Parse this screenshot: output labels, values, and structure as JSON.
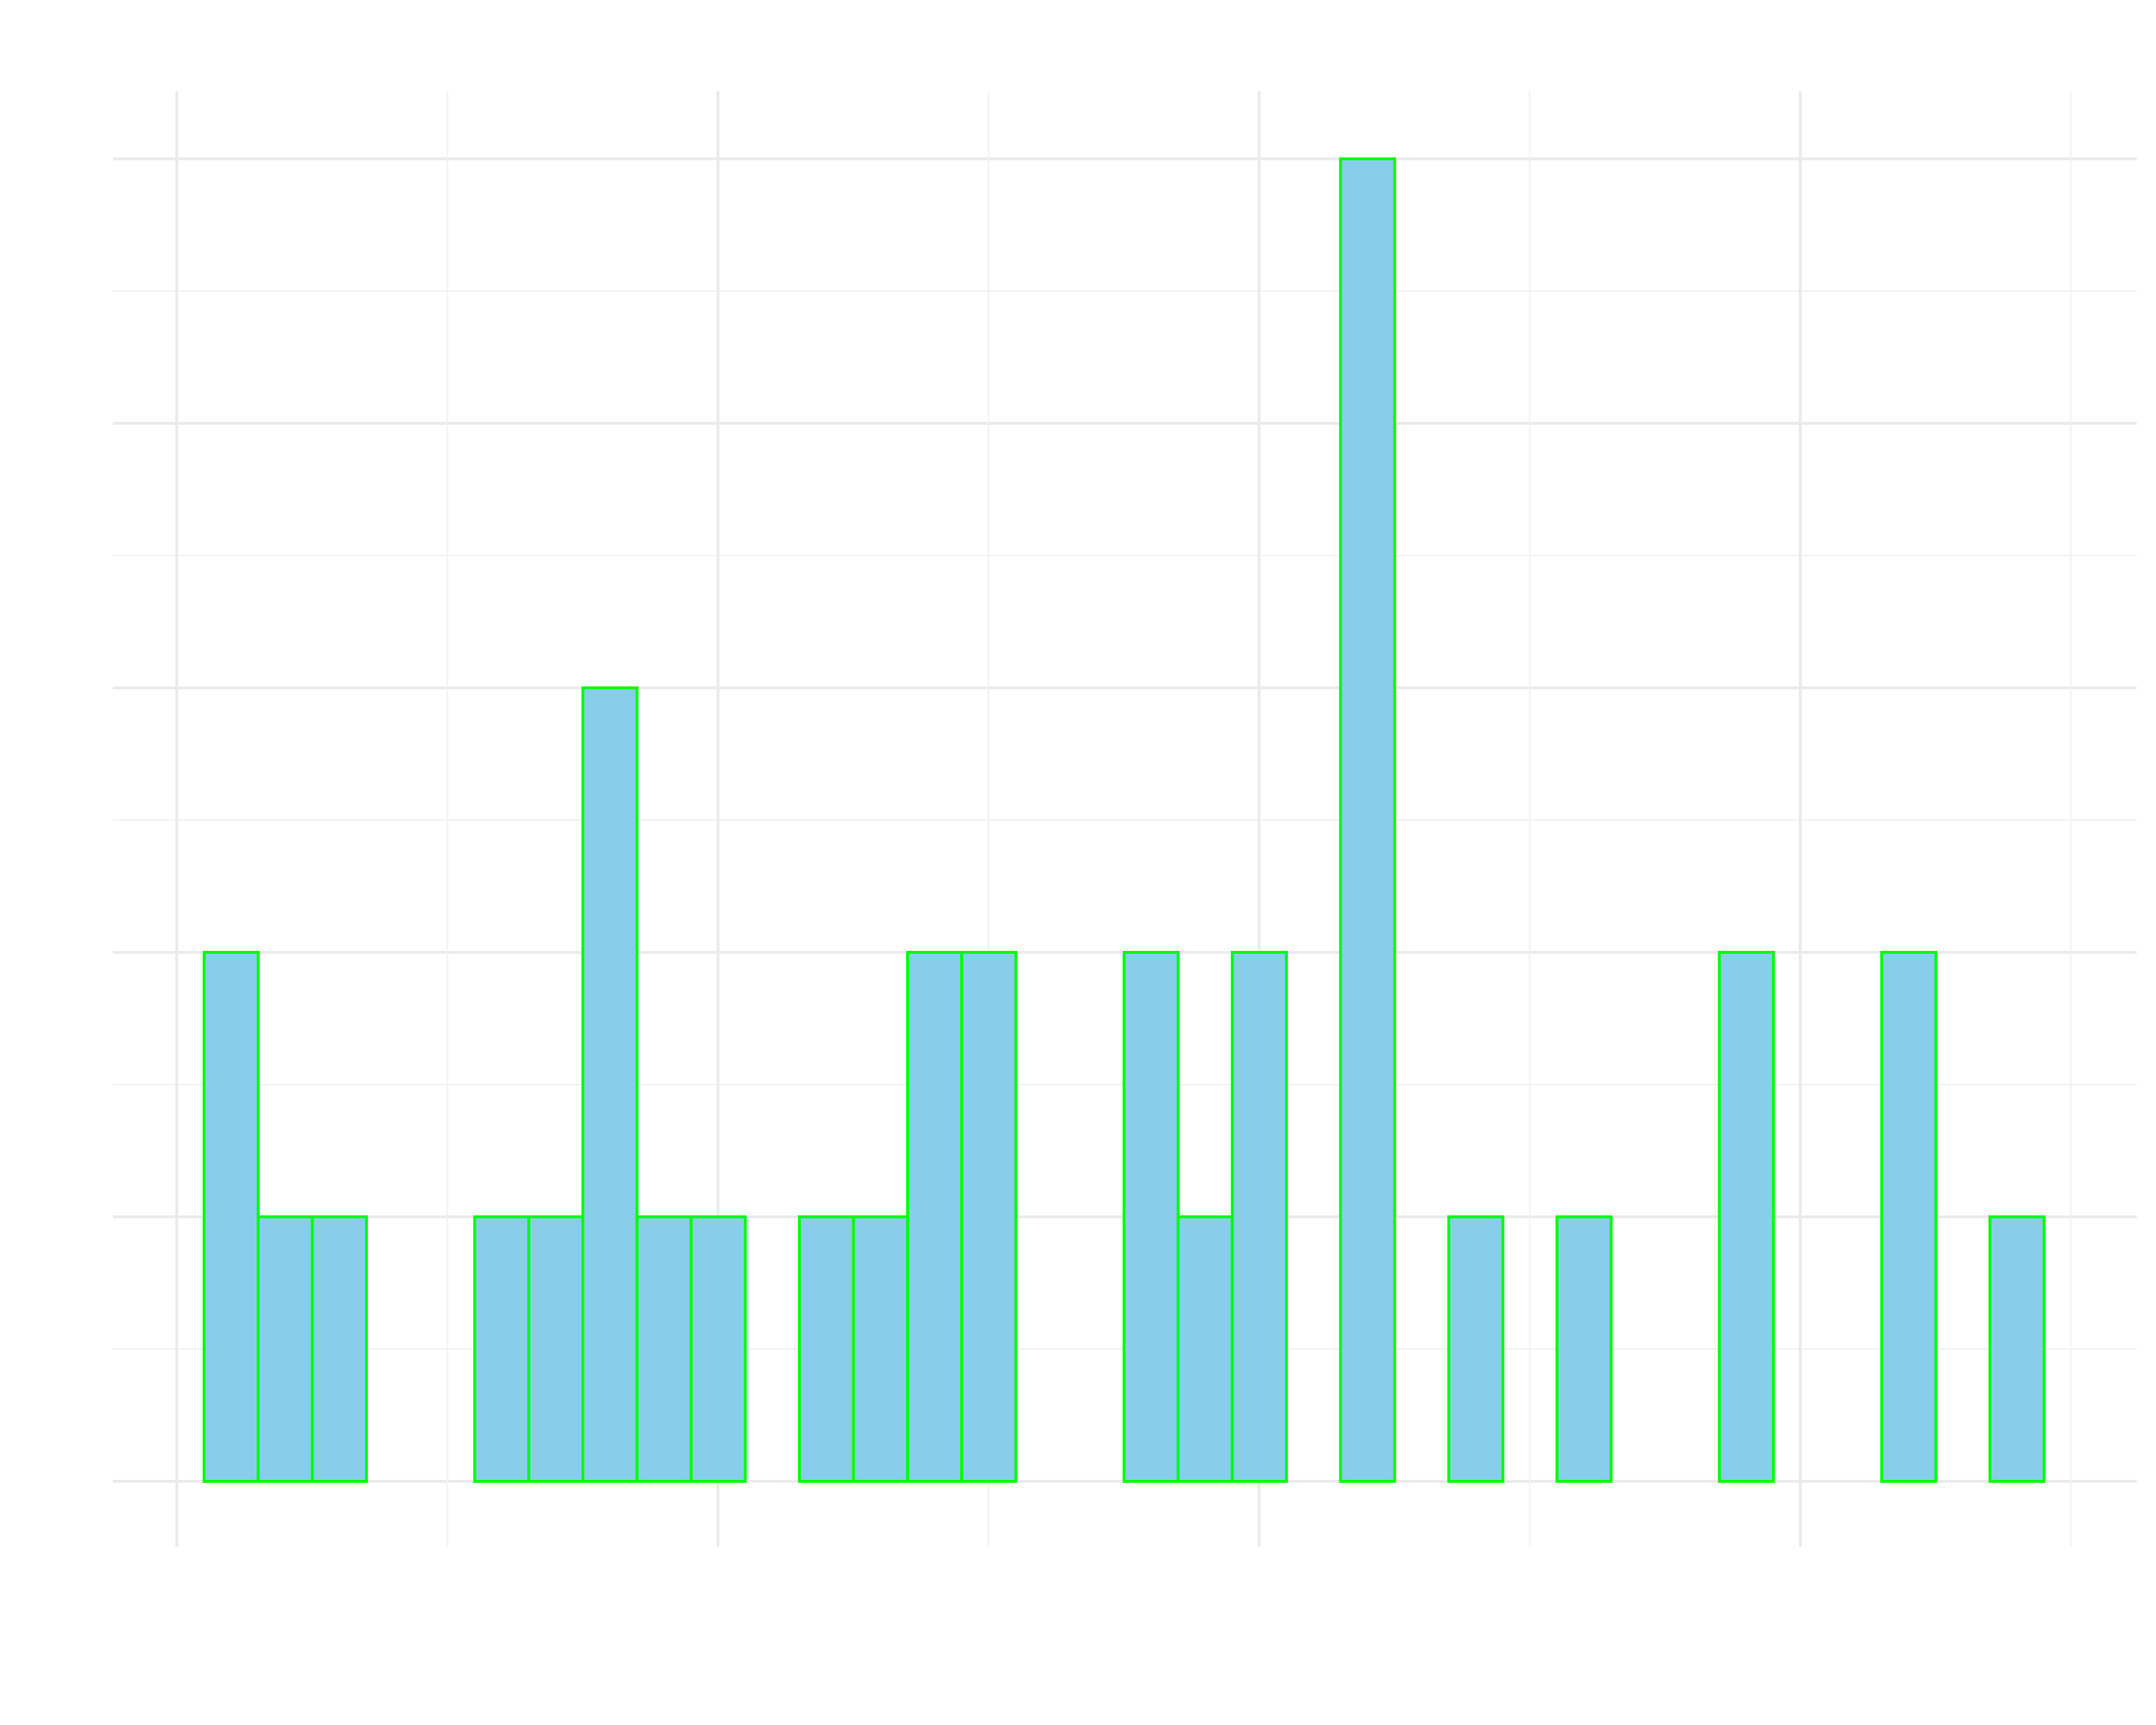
{
  "chart_data": {
    "type": "bar",
    "variant": "histogram",
    "title": "",
    "xlabel": "",
    "ylabel": "",
    "bins": 34,
    "values": [
      2,
      1,
      1,
      0,
      0,
      1,
      1,
      3,
      1,
      1,
      0,
      1,
      1,
      2,
      2,
      0,
      0,
      2,
      1,
      2,
      0,
      5,
      0,
      1,
      0,
      1,
      0,
      0,
      2,
      0,
      0,
      2,
      0,
      1
    ],
    "ylim": [
      -0.25,
      5.25
    ],
    "xlim_bins": [
      -0.5,
      35.0
    ],
    "grid": true,
    "tick_labels_visible": false,
    "legend": "none",
    "colors": {
      "bar_fill": "#87CEEB",
      "bar_edge": "#00FF00",
      "grid_major": "#EBEBEB",
      "grid_minor": "#F2F2F2",
      "background": "#FFFFFF"
    }
  }
}
